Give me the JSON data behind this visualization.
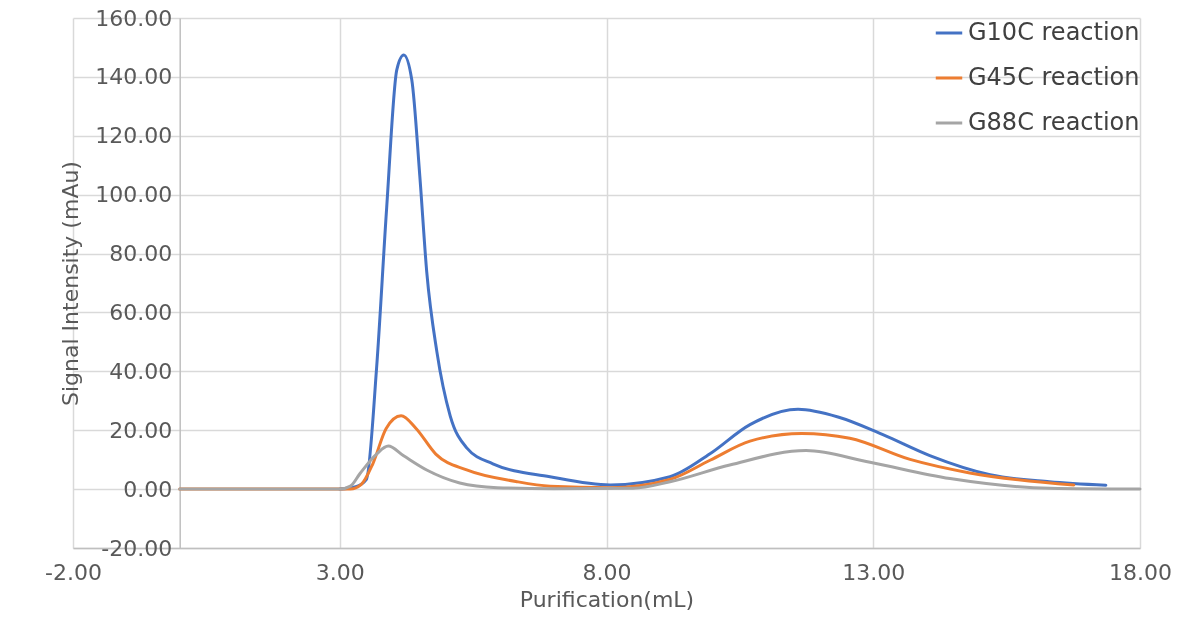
{
  "chart_data": {
    "type": "line",
    "xlabel": "Purification(mL)",
    "ylabel": "Signal Intensity (mAu)",
    "xlim": [
      -2,
      18
    ],
    "xticks": [
      {
        "value": -2,
        "label": "-2.00"
      },
      {
        "value": 3,
        "label": "3.00"
      },
      {
        "value": 8,
        "label": "8.00"
      },
      {
        "value": 13,
        "label": "13.00"
      },
      {
        "value": 18,
        "label": "18.00"
      }
    ],
    "ylim": [
      -20,
      160
    ],
    "yticks": [
      {
        "value": -20,
        "label": "-20.00"
      },
      {
        "value": 0,
        "label": "0.00"
      },
      {
        "value": 20,
        "label": "20.00"
      },
      {
        "value": 40,
        "label": "40.00"
      },
      {
        "value": 60,
        "label": "60.00"
      },
      {
        "value": 80,
        "label": "80.00"
      },
      {
        "value": 100,
        "label": "100.00"
      },
      {
        "value": 120,
        "label": "120.00"
      },
      {
        "value": 140,
        "label": "140.00"
      },
      {
        "value": 160,
        "label": "160.00"
      }
    ],
    "grid": true,
    "legend": "top right",
    "marker": "none",
    "line_style": "solid",
    "series": [
      {
        "name": "G10C reaction",
        "color": "#4472c4",
        "x": [
          3.0,
          3.3,
          3.5,
          3.69,
          3.88,
          4.07,
          4.2,
          4.35,
          4.5,
          4.63,
          4.82,
          5.07,
          5.38,
          5.87,
          6.94,
          8.07,
          9.19,
          9.94,
          10.69,
          11.59,
          12.34,
          13.17,
          14.06,
          15.19,
          16.3,
          17.36
        ],
        "values": [
          0,
          0.8,
          3.3,
          41,
          95.7,
          142.5,
          147.4,
          139,
          106.5,
          73.9,
          46.7,
          24.9,
          14,
          8.6,
          4.2,
          1.4,
          4.2,
          12,
          21.9,
          27.1,
          24.5,
          18.6,
          11.4,
          4.9,
          2.5,
          1.3
        ]
      },
      {
        "name": "G45C reaction",
        "color": "#ed7d31",
        "x": [
          0,
          1.5,
          3.2,
          3.4,
          3.62,
          3.87,
          4.15,
          4.43,
          4.8,
          5.38,
          6.3,
          6.94,
          8.07,
          9.19,
          9.94,
          10.69,
          11.66,
          12.56,
          13.69,
          14.81,
          16.76
        ],
        "values": [
          0,
          0,
          0,
          1.5,
          8.6,
          20.6,
          24.9,
          20.6,
          11.9,
          6.5,
          2.6,
          1,
          0.5,
          3.3,
          9.8,
          16.3,
          18.9,
          17.3,
          10.1,
          5.5,
          1.4
        ]
      },
      {
        "name": "G88C reaction",
        "color": "#a5a5a5",
        "x": [
          0,
          1.5,
          3.0,
          3.2,
          3.38,
          3.69,
          3.91,
          4.19,
          4.63,
          5.25,
          5.95,
          7.0,
          8.5,
          9.19,
          10.31,
          11.74,
          12.94,
          14.44,
          16.31,
          18
        ],
        "values": [
          0,
          0,
          0,
          1,
          5.3,
          11.9,
          14.6,
          11.4,
          6.5,
          2.1,
          0.5,
          0.1,
          0.3,
          2.5,
          8.2,
          13.1,
          9.1,
          3.6,
          0.3,
          0
        ]
      }
    ]
  }
}
